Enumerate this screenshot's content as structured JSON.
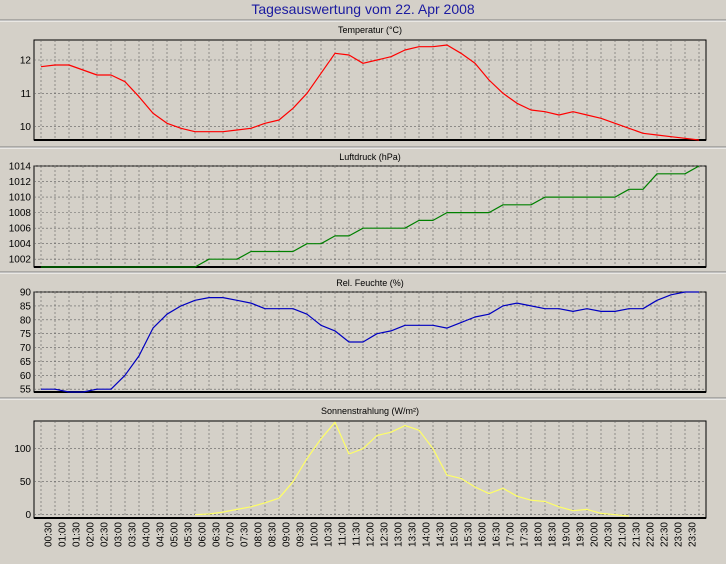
{
  "title": "Tagesauswertung vom 22. Apr 2008",
  "chart_data": [
    {
      "type": "line",
      "title": "Temperatur (°C)",
      "color": "#ff0000",
      "ylim": [
        9.6,
        12.6
      ],
      "yticks": [
        "10",
        "11",
        "12"
      ],
      "grid": true,
      "x": [
        "00:00",
        "00:30",
        "01:00",
        "01:30",
        "02:00",
        "02:30",
        "03:00",
        "03:30",
        "04:00",
        "04:30",
        "05:00",
        "05:30",
        "06:00",
        "06:30",
        "07:00",
        "07:30",
        "08:00",
        "08:30",
        "09:00",
        "09:30",
        "10:00",
        "10:30",
        "11:00",
        "11:30",
        "12:00",
        "12:30",
        "13:00",
        "13:30",
        "14:00",
        "14:30",
        "15:00",
        "15:30",
        "16:00",
        "16:30",
        "17:00",
        "17:30",
        "18:00",
        "18:30",
        "19:00",
        "19:30",
        "20:00",
        "20:30",
        "21:00",
        "21:30",
        "22:00",
        "22:30",
        "23:00",
        "23:30"
      ],
      "values": [
        11.8,
        11.85,
        11.85,
        11.7,
        11.55,
        11.55,
        11.35,
        10.9,
        10.4,
        10.1,
        9.95,
        9.85,
        9.85,
        9.85,
        9.9,
        9.95,
        10.1,
        10.2,
        10.55,
        11.0,
        11.6,
        12.2,
        12.15,
        11.9,
        12.0,
        12.1,
        12.3,
        12.4,
        12.4,
        12.45,
        12.2,
        11.9,
        11.4,
        11.0,
        10.7,
        10.5,
        10.45,
        10.35,
        10.45,
        10.35,
        10.25,
        10.1,
        9.95,
        9.8,
        9.75,
        9.7,
        9.65,
        9.6
      ],
      "values_note": null
    },
    {
      "type": "line",
      "title": "Luftdruck (hPa)",
      "color": "#008000",
      "ylim": [
        1001,
        1014
      ],
      "yticks": [
        "1002",
        "1004",
        "1006",
        "1008",
        "1010",
        "1012",
        "1014"
      ],
      "grid": true,
      "x": [
        "00:00",
        "00:30",
        "01:00",
        "01:30",
        "02:00",
        "02:30",
        "03:00",
        "03:30",
        "04:00",
        "04:30",
        "05:00",
        "05:30",
        "06:00",
        "06:30",
        "07:00",
        "07:30",
        "08:00",
        "08:30",
        "09:00",
        "09:30",
        "10:00",
        "10:30",
        "11:00",
        "11:30",
        "12:00",
        "12:30",
        "13:00",
        "13:30",
        "14:00",
        "14:30",
        "15:00",
        "15:30",
        "16:00",
        "16:30",
        "17:00",
        "17:30",
        "18:00",
        "18:30",
        "19:00",
        "19:30",
        "20:00",
        "20:30",
        "21:00",
        "21:30",
        "22:00",
        "22:30",
        "23:00",
        "23:30"
      ],
      "values": [
        1001,
        1001,
        1001,
        1001,
        1001,
        1001,
        1001,
        1001,
        1001,
        1001,
        1001,
        1001,
        1002,
        1002,
        1002,
        1003,
        1003,
        1003,
        1003,
        1004,
        1004,
        1005,
        1005,
        1006,
        1006,
        1006,
        1006,
        1007,
        1007,
        1008,
        1008,
        1008,
        1008,
        1009,
        1009,
        1009,
        1010,
        1010,
        1010,
        1010,
        1010,
        1010,
        1011,
        1011,
        1013,
        1013,
        1013,
        1014
      ]
    },
    {
      "type": "line",
      "title": "Rel. Feuchte (%)",
      "color": "#0000c0",
      "ylim": [
        54,
        90
      ],
      "yticks": [
        "55",
        "60",
        "65",
        "70",
        "75",
        "80",
        "85",
        "90"
      ],
      "grid": true,
      "x": [
        "00:00",
        "00:30",
        "01:00",
        "01:30",
        "02:00",
        "02:30",
        "03:00",
        "03:30",
        "04:00",
        "04:30",
        "05:00",
        "05:30",
        "06:00",
        "06:30",
        "07:00",
        "07:30",
        "08:00",
        "08:30",
        "09:00",
        "09:30",
        "10:00",
        "10:30",
        "11:00",
        "11:30",
        "12:00",
        "12:30",
        "13:00",
        "13:30",
        "14:00",
        "14:30",
        "15:00",
        "15:30",
        "16:00",
        "16:30",
        "17:00",
        "17:30",
        "18:00",
        "18:30",
        "19:00",
        "19:30",
        "20:00",
        "20:30",
        "21:00",
        "21:30",
        "22:00",
        "22:30",
        "23:00",
        "23:30"
      ],
      "values": [
        55,
        55,
        54,
        54,
        55,
        55,
        60,
        67,
        77,
        82,
        85,
        87,
        88,
        88,
        87,
        86,
        84,
        84,
        84,
        82,
        78,
        76,
        72,
        72,
        75,
        76,
        78,
        78,
        78,
        77,
        79,
        81,
        82,
        85,
        86,
        85,
        84,
        84,
        83,
        84,
        83,
        83,
        84,
        84,
        87,
        89,
        90,
        90
      ]
    },
    {
      "type": "line",
      "title": "Sonnenstrahlung (W/m²)",
      "color": "#ffff66",
      "ylim": [
        -5,
        142
      ],
      "yticks": [
        "0",
        "50",
        "100"
      ],
      "grid": true,
      "x": [
        "00:00",
        "00:30",
        "01:00",
        "01:30",
        "02:00",
        "02:30",
        "03:00",
        "03:30",
        "04:00",
        "04:30",
        "05:00",
        "05:30",
        "06:00",
        "06:30",
        "07:00",
        "07:30",
        "08:00",
        "08:30",
        "09:00",
        "09:30",
        "10:00",
        "10:30",
        "11:00",
        "11:30",
        "12:00",
        "12:30",
        "13:00",
        "13:30",
        "14:00",
        "14:30",
        "15:00",
        "15:30",
        "16:00",
        "16:30",
        "17:00",
        "17:30",
        "18:00",
        "18:30",
        "19:00",
        "19:30",
        "20:00",
        "20:30",
        "21:00",
        "21:30",
        "22:00",
        "22:30",
        "23:00",
        "23:30"
      ],
      "values": [
        null,
        null,
        null,
        null,
        null,
        null,
        null,
        null,
        null,
        null,
        null,
        0,
        1,
        4,
        8,
        12,
        18,
        25,
        50,
        85,
        115,
        140,
        92,
        100,
        120,
        125,
        135,
        128,
        100,
        60,
        55,
        42,
        32,
        40,
        28,
        22,
        20,
        12,
        6,
        8,
        2,
        0,
        -2,
        null,
        null,
        null,
        null,
        null
      ]
    }
  ],
  "x_tick_labels": [
    "00:30",
    "01:00",
    "01:30",
    "02:00",
    "02:30",
    "03:00",
    "03:30",
    "04:00",
    "04:30",
    "05:00",
    "05:30",
    "06:00",
    "06:30",
    "07:00",
    "07:30",
    "08:00",
    "08:30",
    "09:00",
    "09:30",
    "10:00",
    "10:30",
    "11:00",
    "11:30",
    "12:00",
    "12:30",
    "13:00",
    "13:30",
    "14:00",
    "14:30",
    "15:00",
    "15:30",
    "16:00",
    "16:30",
    "17:00",
    "17:30",
    "18:00",
    "18:30",
    "19:00",
    "19:30",
    "20:00",
    "20:30",
    "21:00",
    "21:30",
    "22:00",
    "22:30",
    "23:00",
    "23:30"
  ]
}
